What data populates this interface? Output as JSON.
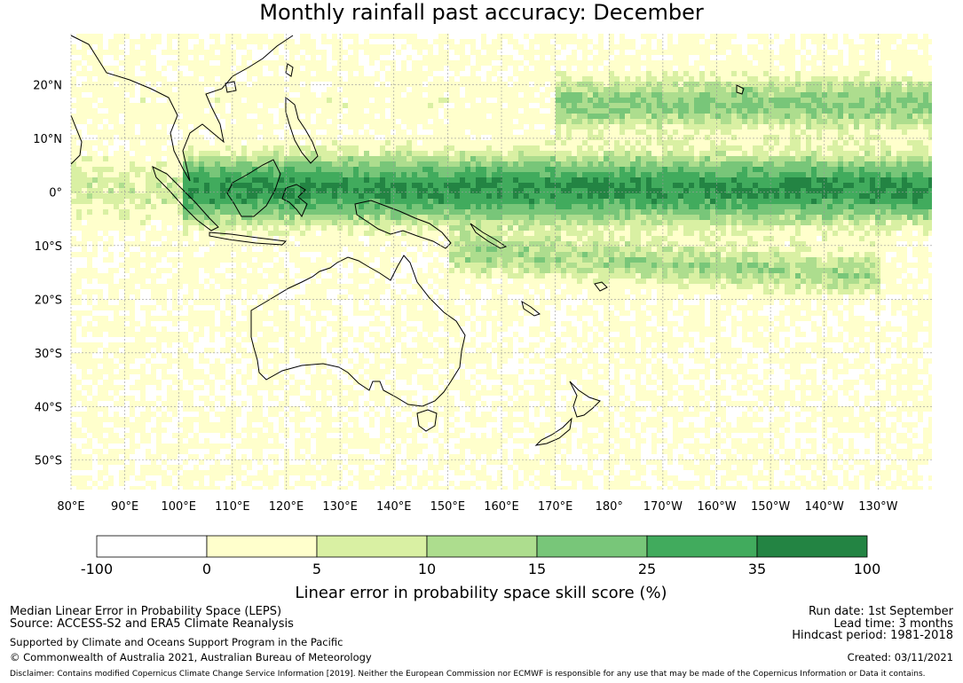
{
  "title": "Monthly rainfall past accuracy: December",
  "map": {
    "lat_labels": [
      "20°N",
      "10°N",
      "0°",
      "10°S",
      "20°S",
      "30°S",
      "40°S",
      "50°S"
    ],
    "lon_labels": [
      "80°E",
      "90°E",
      "100°E",
      "110°E",
      "120°E",
      "130°E",
      "140°E",
      "150°E",
      "160°E",
      "170°E",
      "180°",
      "170°W",
      "160°W",
      "150°W",
      "140°W",
      "130°W"
    ],
    "lat_values": [
      20,
      10,
      0,
      -10,
      -20,
      -30,
      -40,
      -50
    ],
    "lon_values": [
      80,
      90,
      100,
      110,
      120,
      130,
      140,
      150,
      160,
      170,
      180,
      190,
      200,
      210,
      220,
      230
    ],
    "extent": {
      "lon_min": 80,
      "lon_max": 240,
      "lat_min": -55.5,
      "lat_max": 29.5
    }
  },
  "colorbar": {
    "label": "Linear error in probability space skill score (%)",
    "ticks": [
      "-100",
      "0",
      "5",
      "10",
      "15",
      "25",
      "35",
      "100"
    ],
    "colors": [
      "#ffffff",
      "#ffffcc",
      "#d9f0a3",
      "#addd8e",
      "#78c679",
      "#41ab5d",
      "#238443"
    ]
  },
  "footer": {
    "line1": "Median Linear Error in Probability Space (LEPS)",
    "line2": "Source: ACCESS-S2 and ERA5 Climate Reanalysis",
    "line3": "Supported by Climate and Oceans Support Program in the Pacific",
    "line4": "© Commonwealth of Australia 2021, Australian Bureau of Meteorology",
    "run_date": "Run date: 1st September",
    "lead_time": "Lead time: 3 months",
    "hindcast": "Hindcast period: 1981-2018",
    "created": "Created: 03/11/2021",
    "disclaimer": "Disclaimer: Contains modified Copernicus Climate Change Service Information [2019]. Neither the European Commission nor ECMWF is responsible for any use that may be made of the Copernicus Information or Data it contains."
  }
}
